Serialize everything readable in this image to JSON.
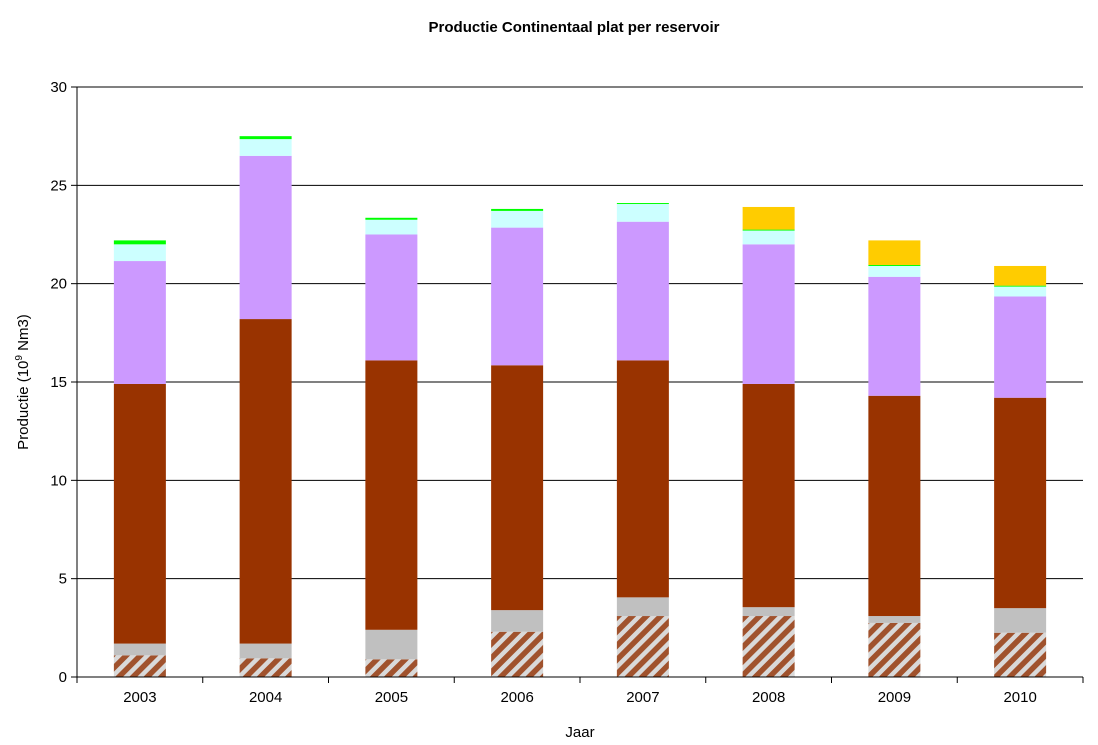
{
  "chart_data": {
    "type": "bar",
    "stacked": true,
    "title": "Productie Continentaal plat per reservoir",
    "xlabel": "Jaar",
    "ylabel": "Productie (10",
    "ylabel_superscript": "9",
    "ylabel_unit": " Nm3)",
    "ylim": [
      0,
      30
    ],
    "yticks": [
      0,
      5,
      10,
      15,
      20,
      25,
      30
    ],
    "grid": true,
    "categories": [
      "2003",
      "2004",
      "2005",
      "2006",
      "2007",
      "2008",
      "2009",
      "2010"
    ],
    "series": [
      {
        "color": "#a0522d",
        "pattern": "hatch",
        "values": [
          1.1,
          0.95,
          0.9,
          2.3,
          3.1,
          3.1,
          2.75,
          2.25
        ]
      },
      {
        "color": "#c0c0c0",
        "values": [
          0.6,
          0.75,
          1.5,
          1.1,
          0.95,
          0.45,
          0.35,
          1.25
        ]
      },
      {
        "color": "#993300",
        "values": [
          13.2,
          16.5,
          13.7,
          12.45,
          12.05,
          11.35,
          11.2,
          10.7
        ]
      },
      {
        "color": "#cc99ff",
        "values": [
          6.25,
          8.3,
          6.4,
          7.0,
          7.05,
          7.1,
          6.05,
          5.15
        ]
      },
      {
        "color": "#ccffff",
        "values": [
          0.85,
          0.85,
          0.75,
          0.85,
          0.9,
          0.7,
          0.55,
          0.5
        ]
      },
      {
        "color": "#00ff00",
        "values": [
          0.2,
          0.15,
          0.1,
          0.1,
          0.05,
          0.05,
          0.05,
          0.05
        ]
      },
      {
        "color": "#ffcc00",
        "values": [
          0,
          0,
          0,
          0,
          0,
          1.15,
          1.25,
          1.0
        ]
      }
    ]
  }
}
